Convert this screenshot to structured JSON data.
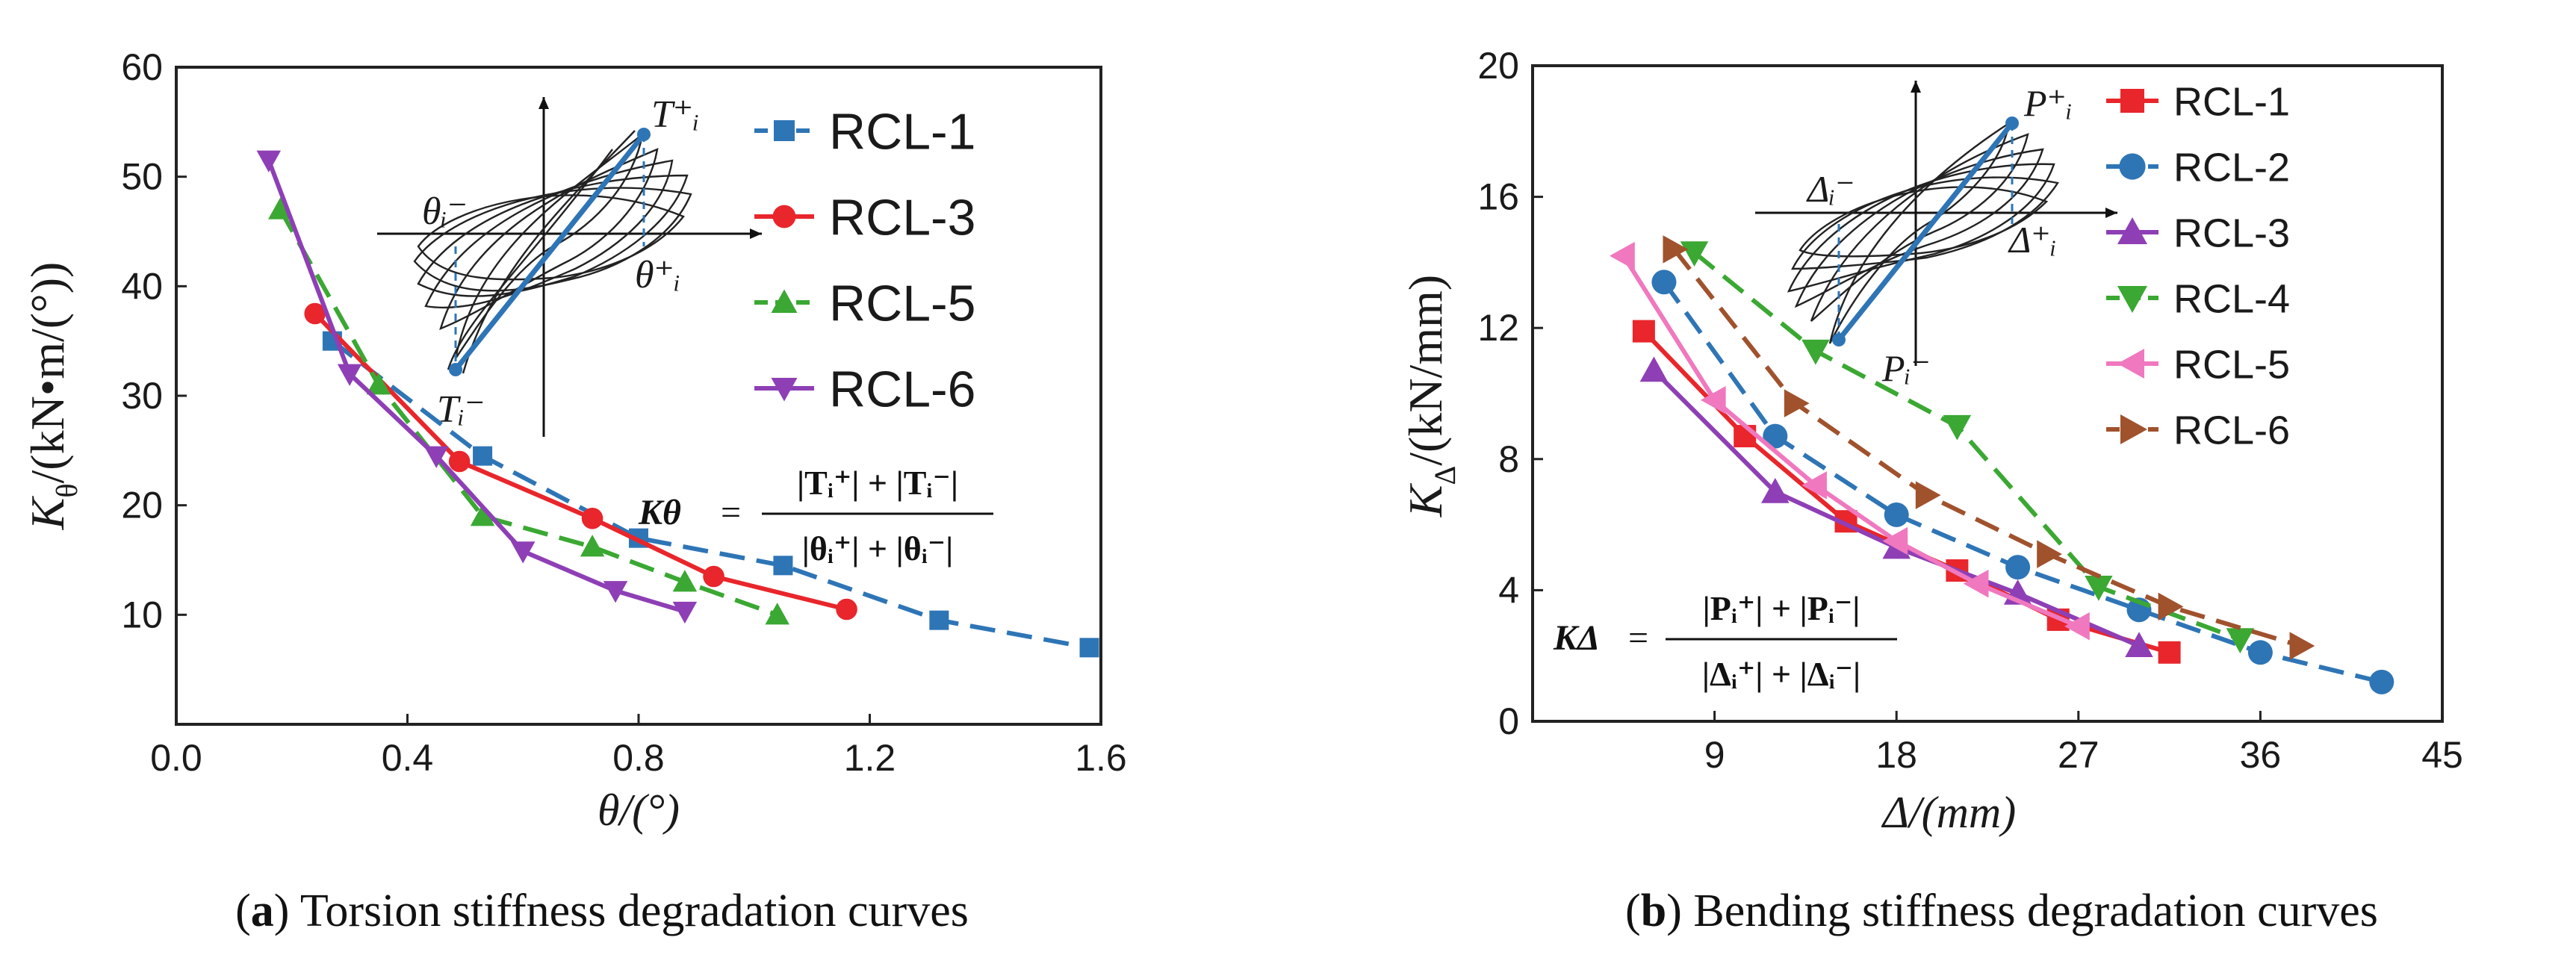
{
  "chart_data": [
    {
      "id": "a",
      "type": "line",
      "title": "",
      "caption_label": "a",
      "caption_text": "Torsion stiffness degradation curves",
      "xlabel": "θ/(°)",
      "ylabel": "K_θ/(kN•m/(°))",
      "ylabel_main": "K",
      "ylabel_sub": "θ",
      "ylabel_rest": "/(kN•m/(°))",
      "xlim": [
        0.0,
        1.6
      ],
      "ylim": [
        0,
        60
      ],
      "xticks": [
        "0.0",
        "0.4",
        "0.8",
        "1.2",
        "1.6"
      ],
      "xtick_values": [
        0.0,
        0.4,
        0.8,
        1.2,
        1.6
      ],
      "yticks": [
        "10",
        "20",
        "30",
        "40",
        "50",
        "60"
      ],
      "ytick_values": [
        10,
        20,
        30,
        40,
        50,
        60
      ],
      "formula": {
        "lhs": "Kθ",
        "numerator": "|Tᵢ⁺| + |Tᵢ⁻|",
        "denominator": "|θᵢ⁺| + |θᵢ⁻|"
      },
      "inset_labels": {
        "top": "T⁺ᵢ",
        "bottom": "Tᵢ⁻",
        "left": "θᵢ⁻",
        "right": "θ⁺ᵢ"
      },
      "series": [
        {
          "name": "RCL-1",
          "color": "#2e75b6",
          "marker": "square",
          "dashed": true,
          "x": [
            0.27,
            0.53,
            0.8,
            1.05,
            1.32,
            1.58
          ],
          "y": [
            35,
            24.5,
            17,
            14.5,
            9.5,
            7
          ]
        },
        {
          "name": "RCL-3",
          "color": "#e8262b",
          "marker": "circle",
          "dashed": false,
          "x": [
            0.24,
            0.49,
            0.72,
            0.93,
            1.16
          ],
          "y": [
            37.5,
            24,
            18.8,
            13.5,
            10.5
          ]
        },
        {
          "name": "RCL-5",
          "color": "#3aa832",
          "marker": "triangle-up",
          "dashed": true,
          "x": [
            0.18,
            0.35,
            0.53,
            0.72,
            0.88,
            1.04
          ],
          "y": [
            47,
            31,
            19,
            16.2,
            13,
            10
          ]
        },
        {
          "name": "RCL-6",
          "color": "#8e3fb5",
          "marker": "triangle-down",
          "dashed": false,
          "x": [
            0.16,
            0.3,
            0.45,
            0.6,
            0.76,
            0.88
          ],
          "y": [
            51.5,
            32,
            24.5,
            15.8,
            12.2,
            10.3
          ]
        }
      ]
    },
    {
      "id": "b",
      "type": "line",
      "title": "",
      "caption_label": "b",
      "caption_text": "Bending stiffness degradation curves",
      "xlabel": "Δ/(mm)",
      "ylabel": "K_Δ/(kN/mm)",
      "ylabel_main": "K",
      "ylabel_sub": "Δ",
      "ylabel_rest": "/(kN/mm)",
      "xlim": [
        0,
        45
      ],
      "ylim": [
        0,
        20
      ],
      "xticks": [
        "9",
        "18",
        "27",
        "36",
        "45"
      ],
      "xtick_values": [
        9,
        18,
        27,
        36,
        45
      ],
      "yticks": [
        "0",
        "4",
        "8",
        "12",
        "16",
        "20"
      ],
      "ytick_values": [
        0,
        4,
        8,
        12,
        16,
        20
      ],
      "formula": {
        "lhs": "KΔ",
        "numerator": "|Pᵢ⁺| + |Pᵢ⁻|",
        "denominator": "|Δᵢ⁺| + |Δᵢ⁻|"
      },
      "inset_labels": {
        "top": "P⁺ᵢ",
        "bottom": "Pᵢ⁻",
        "left": "Δᵢ⁻",
        "right": "Δ⁺ᵢ"
      },
      "series": [
        {
          "name": "RCL-1",
          "color": "#e8262b",
          "marker": "square",
          "dashed": false,
          "x": [
            5.5,
            10.5,
            15.5,
            21,
            26,
            31.5
          ],
          "y": [
            11.9,
            8.7,
            6.1,
            4.6,
            3.1,
            2.1
          ]
        },
        {
          "name": "RCL-2",
          "color": "#2e75b6",
          "marker": "circle",
          "dashed": true,
          "x": [
            6.5,
            12,
            18,
            24,
            30,
            36,
            42
          ],
          "y": [
            13.4,
            8.7,
            6.3,
            4.7,
            3.4,
            2.1,
            1.2
          ]
        },
        {
          "name": "RCL-3",
          "color": "#8e3fb5",
          "marker": "triangle-up",
          "dashed": false,
          "x": [
            6,
            12,
            18,
            24,
            30
          ],
          "y": [
            10.7,
            7.0,
            5.3,
            3.9,
            2.3
          ]
        },
        {
          "name": "RCL-4",
          "color": "#3aa832",
          "marker": "triangle-down",
          "dashed": true,
          "x": [
            8,
            14,
            21,
            28,
            35
          ],
          "y": [
            14.3,
            11.3,
            9.0,
            4.1,
            2.5
          ]
        },
        {
          "name": "RCL-5",
          "color": "#f078bf",
          "marker": "triangle-left",
          "dashed": false,
          "x": [
            4.5,
            9,
            14,
            18,
            22,
            27
          ],
          "y": [
            14.2,
            9.8,
            7.2,
            5.5,
            4.2,
            2.9
          ]
        },
        {
          "name": "RCL-6",
          "color": "#a0522d",
          "marker": "triangle-right",
          "dashed": true,
          "x": [
            7,
            13,
            19.5,
            25.5,
            31.5,
            38
          ],
          "y": [
            14.4,
            9.7,
            6.9,
            5.1,
            3.5,
            2.3
          ]
        }
      ]
    }
  ]
}
